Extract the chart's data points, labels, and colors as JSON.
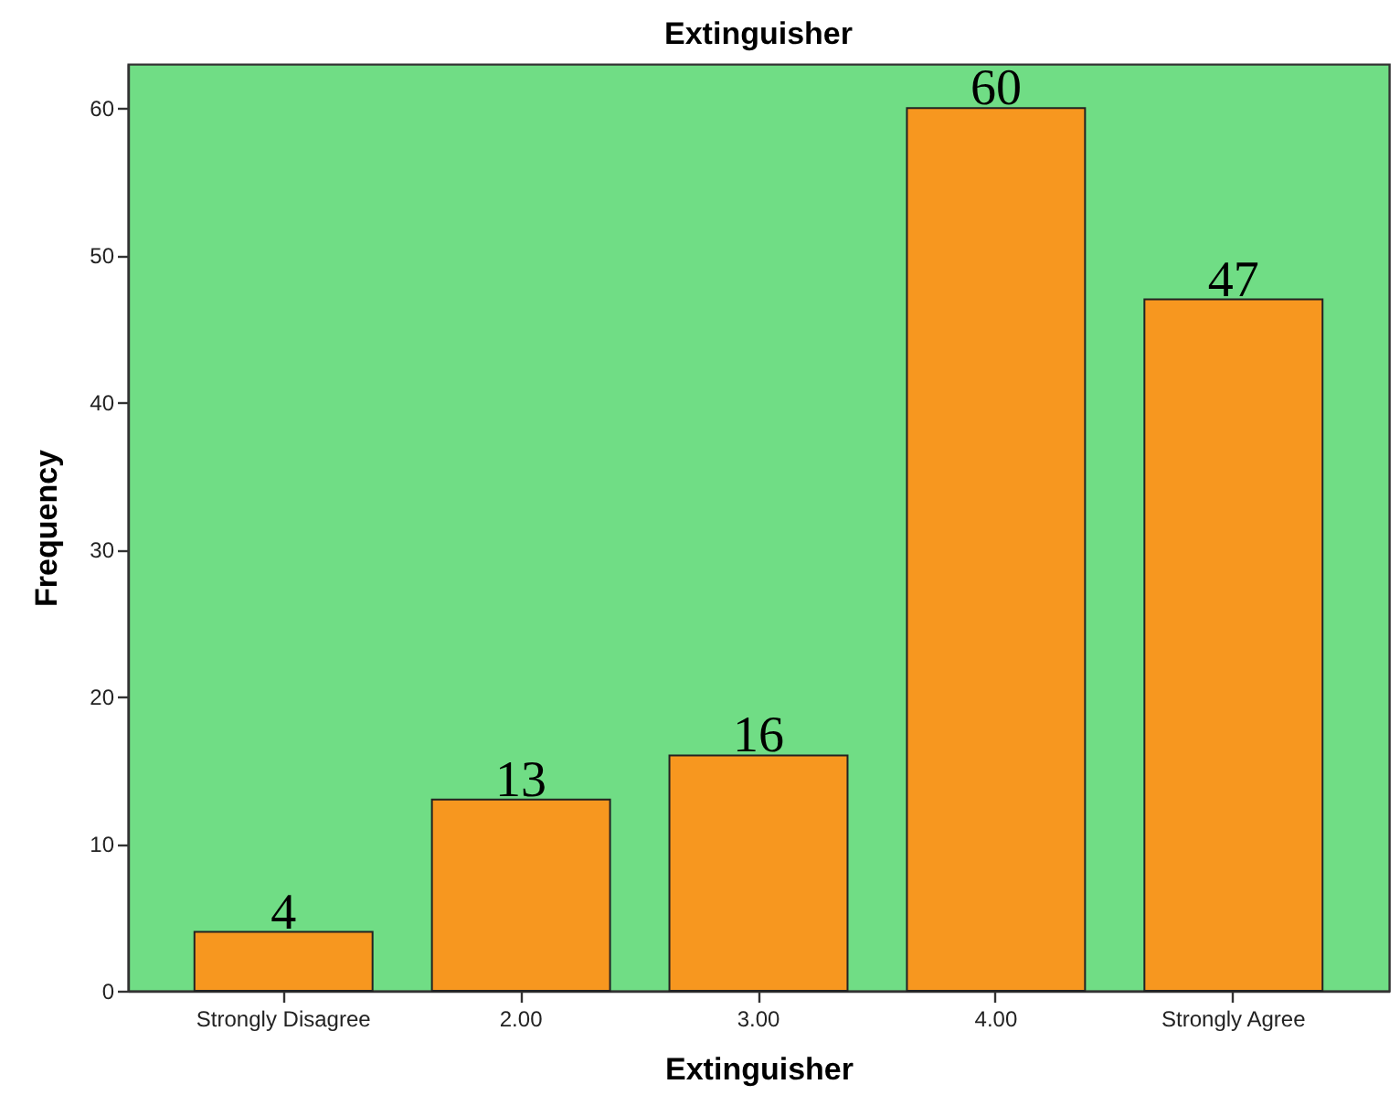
{
  "chart_data": {
    "type": "bar",
    "title": "Extinguisher",
    "xlabel": "Extinguisher",
    "ylabel": "Frequency",
    "categories": [
      "Strongly Disagree",
      "2.00",
      "3.00",
      "4.00",
      "Strongly Agree"
    ],
    "values": [
      4,
      13,
      16,
      60,
      47
    ],
    "color": "#f7971f",
    "ylim": [
      0,
      63
    ],
    "yticks": [
      0,
      10,
      20,
      30,
      40,
      50,
      60
    ],
    "data_labels": true
  }
}
